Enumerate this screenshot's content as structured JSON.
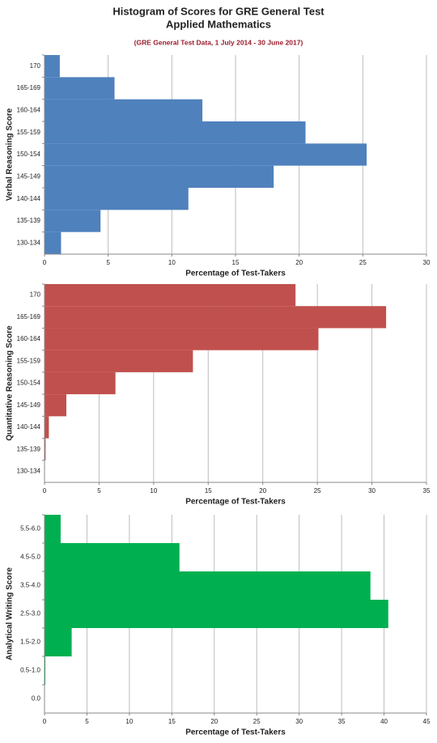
{
  "header": {
    "title": [
      "Histogram of Scores for GRE General Test",
      "Applied Mathematics"
    ],
    "subtitle": "(GRE General Test Data, 1 July 2014 - 30 June 2017)"
  },
  "chart_data": [
    {
      "type": "bar",
      "orientation": "horizontal",
      "color": "#4f81bd",
      "grid": true,
      "ylabel": "Verbal Reasoning Score",
      "xlabel": "Percentage of Test-Takers",
      "categories": [
        "170",
        "165-169",
        "160-164",
        "155-159",
        "150-154",
        "145-149",
        "140-144",
        "135-139",
        "130-134"
      ],
      "values": [
        1.2,
        5.5,
        12.4,
        20.5,
        25.3,
        18.0,
        11.3,
        4.4,
        1.3
      ],
      "xlim": [
        0,
        30
      ],
      "xticks": [
        0,
        5,
        10,
        15,
        20,
        25,
        30
      ]
    },
    {
      "type": "bar",
      "orientation": "horizontal",
      "color": "#c0504d",
      "grid": true,
      "ylabel": "Quantitative Reasoning Score",
      "xlabel": "Percentage of Test-Takers",
      "categories": [
        "170",
        "165-169",
        "160-164",
        "155-159",
        "150-154",
        "145-149",
        "140-144",
        "135-139",
        "130-134"
      ],
      "values": [
        23.0,
        31.3,
        25.1,
        13.6,
        6.5,
        2.0,
        0.4,
        0.1,
        0
      ],
      "xlim": [
        0,
        35
      ],
      "xticks": [
        0,
        5,
        10,
        15,
        20,
        25,
        30,
        35
      ]
    },
    {
      "type": "bar",
      "orientation": "horizontal",
      "color": "#00b050",
      "grid": true,
      "ylabel": "Analytical Writing Score",
      "xlabel": "Percentage of Test-Takers",
      "categories": [
        "5.5-6.0",
        "4.5-5.0",
        "3.5-4.0",
        "2.5-3.0",
        "1.5-2.0",
        "0.5-1.0",
        "0.0"
      ],
      "values": [
        1.9,
        15.9,
        38.4,
        40.5,
        3.2,
        0.1,
        0
      ],
      "xlim": [
        0,
        45
      ],
      "xticks": [
        0,
        5,
        10,
        15,
        20,
        25,
        30,
        35,
        40,
        45
      ]
    }
  ]
}
